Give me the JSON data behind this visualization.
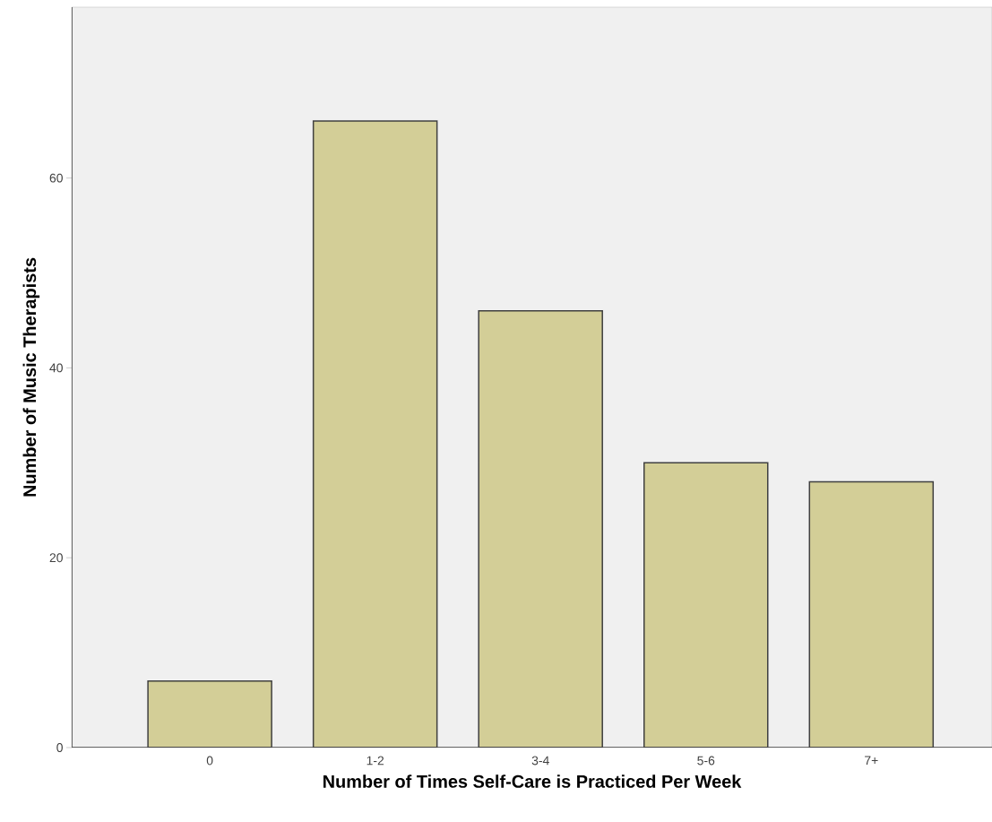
{
  "chart_data": {
    "type": "bar",
    "xlabel": "Number of Times Self-Care is Practiced Per Week",
    "ylabel": "Number of Music Therapists",
    "categories": [
      "0",
      "1-2",
      "3-4",
      "5-6",
      "7+"
    ],
    "values": [
      7,
      66,
      46,
      30,
      28
    ],
    "color": "#d3ce97",
    "ylim": [
      0,
      78
    ],
    "yticks": [
      0,
      20,
      40,
      60
    ]
  }
}
